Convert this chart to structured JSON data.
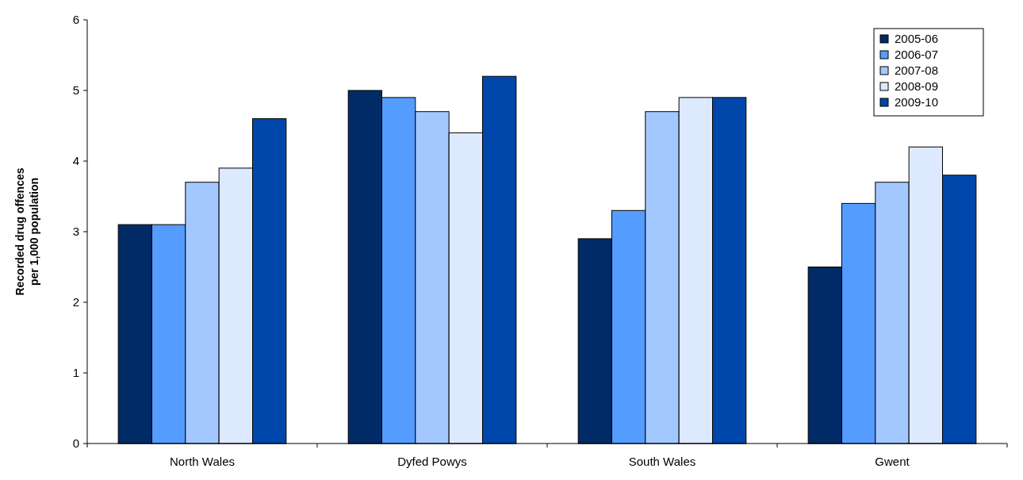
{
  "chart_data": {
    "type": "bar",
    "ylabel": "Recorded drug offences\nper 1,000 population",
    "categories": [
      "North Wales",
      "Dyfed Powys",
      "South Wales",
      "Gwent"
    ],
    "series": [
      {
        "name": "2005-06",
        "color": "#002b66",
        "values": [
          3.1,
          5.0,
          2.9,
          2.5
        ]
      },
      {
        "name": "2006-07",
        "color": "#559cff",
        "values": [
          3.1,
          4.9,
          3.3,
          3.4
        ]
      },
      {
        "name": "2007-08",
        "color": "#a3c8ff",
        "values": [
          3.7,
          4.7,
          4.7,
          3.7
        ]
      },
      {
        "name": "2008-09",
        "color": "#dde9ff",
        "values": [
          3.9,
          4.4,
          4.9,
          4.2
        ]
      },
      {
        "name": "2009-10",
        "color": "#0047ab",
        "values": [
          4.6,
          5.2,
          4.9,
          3.8
        ]
      }
    ],
    "ylim": [
      0,
      6
    ],
    "yticks": [
      0,
      1,
      2,
      3,
      4,
      5,
      6
    ],
    "grid": false,
    "legend": "top right"
  }
}
